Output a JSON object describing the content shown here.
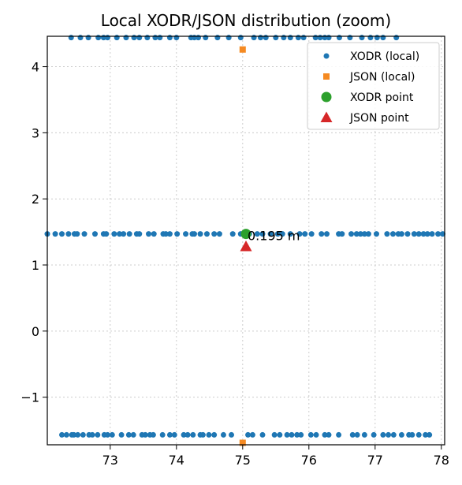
{
  "chart_data": {
    "type": "scatter",
    "title": "Local XODR/JSON distribution (zoom)",
    "xlabel": "",
    "ylabel": "",
    "xlim": [
      72.05,
      78.05
    ],
    "ylim": [
      -1.72,
      4.46
    ],
    "xticks": [
      73,
      74,
      75,
      76,
      77,
      78
    ],
    "yticks": [
      -1,
      0,
      1,
      2,
      3,
      4
    ],
    "xtick_labels": [
      "73",
      "74",
      "75",
      "76",
      "77",
      "78"
    ],
    "ytick_labels": [
      "−1",
      "0",
      "1",
      "2",
      "3",
      "4"
    ],
    "grid": true,
    "legend_position": "top-right",
    "series": [
      {
        "name": "XODR (local)",
        "marker": "circle",
        "color": "#1f77b4",
        "points": [
          [
            72.41,
            4.44
          ],
          [
            72.55,
            4.44
          ],
          [
            72.67,
            4.44
          ],
          [
            72.82,
            4.44
          ],
          [
            72.9,
            4.44
          ],
          [
            72.96,
            4.44
          ],
          [
            73.1,
            4.44
          ],
          [
            73.24,
            4.44
          ],
          [
            73.36,
            4.44
          ],
          [
            73.44,
            4.44
          ],
          [
            73.56,
            4.44
          ],
          [
            73.68,
            4.44
          ],
          [
            73.75,
            4.44
          ],
          [
            73.9,
            4.44
          ],
          [
            74.0,
            4.44
          ],
          [
            74.22,
            4.44
          ],
          [
            74.27,
            4.44
          ],
          [
            74.33,
            4.44
          ],
          [
            74.44,
            4.44
          ],
          [
            74.62,
            4.44
          ],
          [
            74.79,
            4.44
          ],
          [
            74.97,
            4.44
          ],
          [
            75.17,
            4.44
          ],
          [
            75.27,
            4.44
          ],
          [
            75.35,
            4.44
          ],
          [
            75.5,
            4.44
          ],
          [
            75.62,
            4.44
          ],
          [
            75.72,
            4.44
          ],
          [
            75.84,
            4.44
          ],
          [
            75.92,
            4.44
          ],
          [
            76.1,
            4.44
          ],
          [
            76.17,
            4.44
          ],
          [
            76.24,
            4.44
          ],
          [
            76.3,
            4.44
          ],
          [
            76.46,
            4.44
          ],
          [
            76.62,
            4.44
          ],
          [
            76.8,
            4.44
          ],
          [
            76.93,
            4.44
          ],
          [
            77.03,
            4.44
          ],
          [
            77.12,
            4.44
          ],
          [
            77.32,
            4.44
          ],
          [
            72.05,
            1.47
          ],
          [
            72.17,
            1.47
          ],
          [
            72.27,
            1.47
          ],
          [
            72.37,
            1.47
          ],
          [
            72.46,
            1.47
          ],
          [
            72.5,
            1.47
          ],
          [
            72.61,
            1.47
          ],
          [
            72.77,
            1.47
          ],
          [
            72.9,
            1.47
          ],
          [
            72.94,
            1.47
          ],
          [
            73.06,
            1.47
          ],
          [
            73.14,
            1.47
          ],
          [
            73.2,
            1.47
          ],
          [
            73.29,
            1.47
          ],
          [
            73.4,
            1.47
          ],
          [
            73.44,
            1.47
          ],
          [
            73.58,
            1.47
          ],
          [
            73.66,
            1.47
          ],
          [
            73.8,
            1.47
          ],
          [
            73.84,
            1.47
          ],
          [
            73.9,
            1.47
          ],
          [
            74.01,
            1.47
          ],
          [
            74.14,
            1.47
          ],
          [
            74.24,
            1.47
          ],
          [
            74.27,
            1.47
          ],
          [
            74.36,
            1.47
          ],
          [
            74.46,
            1.47
          ],
          [
            74.57,
            1.47
          ],
          [
            74.65,
            1.47
          ],
          [
            74.85,
            1.47
          ],
          [
            74.97,
            1.47
          ],
          [
            75.1,
            1.47
          ],
          [
            75.22,
            1.47
          ],
          [
            75.3,
            1.47
          ],
          [
            75.42,
            1.47
          ],
          [
            75.53,
            1.47
          ],
          [
            75.6,
            1.47
          ],
          [
            75.72,
            1.47
          ],
          [
            75.86,
            1.47
          ],
          [
            75.94,
            1.47
          ],
          [
            76.04,
            1.47
          ],
          [
            76.19,
            1.47
          ],
          [
            76.27,
            1.47
          ],
          [
            76.45,
            1.47
          ],
          [
            76.5,
            1.47
          ],
          [
            76.64,
            1.47
          ],
          [
            76.72,
            1.47
          ],
          [
            76.78,
            1.47
          ],
          [
            76.84,
            1.47
          ],
          [
            76.9,
            1.47
          ],
          [
            77.02,
            1.47
          ],
          [
            77.18,
            1.47
          ],
          [
            77.27,
            1.47
          ],
          [
            77.35,
            1.47
          ],
          [
            77.4,
            1.47
          ],
          [
            77.49,
            1.47
          ],
          [
            77.59,
            1.47
          ],
          [
            77.66,
            1.47
          ],
          [
            77.73,
            1.47
          ],
          [
            77.79,
            1.47
          ],
          [
            77.86,
            1.47
          ],
          [
            77.95,
            1.47
          ],
          [
            78.02,
            1.47
          ],
          [
            72.27,
            -1.57
          ],
          [
            72.34,
            -1.57
          ],
          [
            72.42,
            -1.57
          ],
          [
            72.45,
            -1.57
          ],
          [
            72.51,
            -1.57
          ],
          [
            72.59,
            -1.57
          ],
          [
            72.68,
            -1.57
          ],
          [
            72.73,
            -1.57
          ],
          [
            72.81,
            -1.57
          ],
          [
            72.91,
            -1.57
          ],
          [
            72.96,
            -1.57
          ],
          [
            73.03,
            -1.57
          ],
          [
            73.17,
            -1.57
          ],
          [
            73.28,
            -1.57
          ],
          [
            73.35,
            -1.57
          ],
          [
            73.48,
            -1.57
          ],
          [
            73.53,
            -1.57
          ],
          [
            73.6,
            -1.57
          ],
          [
            73.65,
            -1.57
          ],
          [
            73.79,
            -1.57
          ],
          [
            73.9,
            -1.57
          ],
          [
            73.97,
            -1.57
          ],
          [
            74.11,
            -1.57
          ],
          [
            74.17,
            -1.57
          ],
          [
            74.25,
            -1.57
          ],
          [
            74.36,
            -1.57
          ],
          [
            74.4,
            -1.57
          ],
          [
            74.49,
            -1.57
          ],
          [
            74.57,
            -1.57
          ],
          [
            74.71,
            -1.57
          ],
          [
            74.83,
            -1.57
          ],
          [
            75.08,
            -1.57
          ],
          [
            75.15,
            -1.57
          ],
          [
            75.3,
            -1.57
          ],
          [
            75.48,
            -1.57
          ],
          [
            75.56,
            -1.57
          ],
          [
            75.67,
            -1.57
          ],
          [
            75.74,
            -1.57
          ],
          [
            75.82,
            -1.57
          ],
          [
            75.88,
            -1.57
          ],
          [
            76.03,
            -1.57
          ],
          [
            76.11,
            -1.57
          ],
          [
            76.24,
            -1.57
          ],
          [
            76.3,
            -1.57
          ],
          [
            76.45,
            -1.57
          ],
          [
            76.66,
            -1.57
          ],
          [
            76.73,
            -1.57
          ],
          [
            76.84,
            -1.57
          ],
          [
            76.98,
            -1.57
          ],
          [
            77.12,
            -1.57
          ],
          [
            77.2,
            -1.57
          ],
          [
            77.28,
            -1.57
          ],
          [
            77.4,
            -1.57
          ],
          [
            77.51,
            -1.57
          ],
          [
            77.56,
            -1.57
          ],
          [
            77.66,
            -1.57
          ],
          [
            77.76,
            -1.57
          ],
          [
            77.82,
            -1.57
          ]
        ]
      },
      {
        "name": "JSON (local)",
        "marker": "square",
        "color": "#f58a22",
        "points": [
          [
            75.0,
            4.26
          ],
          [
            75.0,
            -1.69
          ]
        ]
      },
      {
        "name": "XODR point",
        "marker": "circle-large",
        "color": "#2ca02c",
        "points": [
          [
            75.05,
            1.47
          ]
        ]
      },
      {
        "name": "JSON point",
        "marker": "triangle",
        "color": "#d62728",
        "points": [
          [
            75.05,
            1.28
          ]
        ]
      }
    ],
    "annotation": {
      "text": "0.195 m",
      "x": 75.05,
      "y": 1.47
    }
  }
}
